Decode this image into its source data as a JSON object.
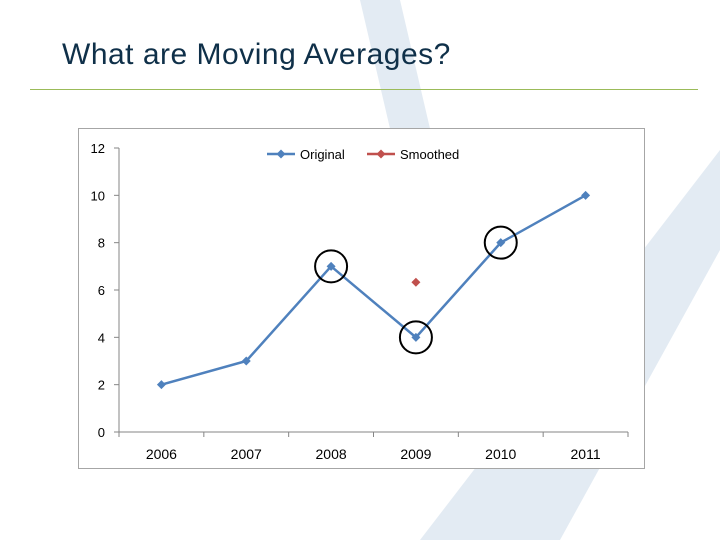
{
  "slide": {
    "title": "What are Moving Averages?",
    "accent_color": "#9bbb59",
    "title_color": "#0f3049"
  },
  "chart_data": {
    "type": "line",
    "title": "",
    "xlabel": "",
    "ylabel": "",
    "categories": [
      "2006",
      "2007",
      "2008",
      "2009",
      "2010",
      "2011"
    ],
    "ylim": [
      0,
      12
    ],
    "yticks": [
      0,
      2,
      4,
      6,
      8,
      10,
      12
    ],
    "grid": false,
    "legend_position": "top",
    "series": [
      {
        "name": "Original",
        "color": "#4f81bd",
        "marker": "diamond",
        "values": [
          2,
          3,
          7,
          4,
          8,
          10
        ]
      },
      {
        "name": "Smoothed",
        "color": "#c0504d",
        "marker": "diamond",
        "values": [
          null,
          null,
          null,
          6.33,
          null,
          null
        ]
      }
    ],
    "annotations": {
      "circled_points": [
        {
          "series": "Original",
          "category": "2008",
          "value": 7
        },
        {
          "series": "Original",
          "category": "2009",
          "value": 4
        },
        {
          "series": "Original",
          "category": "2010",
          "value": 8
        }
      ]
    }
  }
}
